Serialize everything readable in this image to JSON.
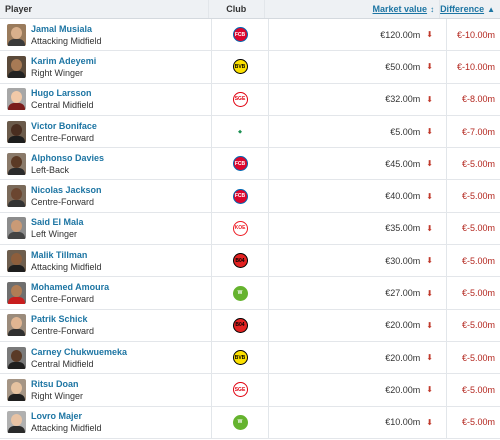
{
  "header": {
    "player": "Player",
    "club": "Club",
    "market_value": "Market value",
    "market_value_sort_icon": "sort-both-icon",
    "difference": "Difference",
    "difference_sort_icon": "sort-asc-icon"
  },
  "colors": {
    "link": "#1d75a3",
    "negative": "#b3261e",
    "arrow_down": "#c0392b",
    "header_bg": "#eef1f4"
  },
  "rows": [
    {
      "name": "Jamal Musiala",
      "position": "Attacking Midfield",
      "club_icon": "bayern-munich-logo-icon",
      "market_value": "€120.00m",
      "difference": "€-10.00m"
    },
    {
      "name": "Karim Adeyemi",
      "position": "Right Winger",
      "club_icon": "borussia-dortmund-logo-icon",
      "market_value": "€50.00m",
      "difference": "€-10.00m"
    },
    {
      "name": "Hugo Larsson",
      "position": "Central Midfield",
      "club_icon": "eintracht-frankfurt-logo-icon",
      "market_value": "€32.00m",
      "difference": "€-8.00m"
    },
    {
      "name": "Victor Boniface",
      "position": "Centre-Forward",
      "club_icon": "werder-bremen-logo-icon",
      "market_value": "€5.00m",
      "difference": "€-7.00m"
    },
    {
      "name": "Alphonso Davies",
      "position": "Left-Back",
      "club_icon": "bayern-munich-logo-icon",
      "market_value": "€45.00m",
      "difference": "€-5.00m"
    },
    {
      "name": "Nicolas Jackson",
      "position": "Centre-Forward",
      "club_icon": "bayern-munich-logo-icon",
      "market_value": "€40.00m",
      "difference": "€-5.00m"
    },
    {
      "name": "Said El Mala",
      "position": "Left Winger",
      "club_icon": "fc-koln-logo-icon",
      "market_value": "€35.00m",
      "difference": "€-5.00m"
    },
    {
      "name": "Malik Tillman",
      "position": "Attacking Midfield",
      "club_icon": "bayer-leverkusen-logo-icon",
      "market_value": "€30.00m",
      "difference": "€-5.00m"
    },
    {
      "name": "Mohamed Amoura",
      "position": "Centre-Forward",
      "club_icon": "vfl-wolfsburg-logo-icon",
      "market_value": "€27.00m",
      "difference": "€-5.00m"
    },
    {
      "name": "Patrik Schick",
      "position": "Centre-Forward",
      "club_icon": "bayer-leverkusen-logo-icon",
      "market_value": "€20.00m",
      "difference": "€-5.00m"
    },
    {
      "name": "Carney Chukwuemeka",
      "position": "Central Midfield",
      "club_icon": "borussia-dortmund-logo-icon",
      "market_value": "€20.00m",
      "difference": "€-5.00m"
    },
    {
      "name": "Ritsu Doan",
      "position": "Right Winger",
      "club_icon": "eintracht-frankfurt-logo-icon",
      "market_value": "€20.00m",
      "difference": "€-5.00m"
    },
    {
      "name": "Lovro Majer",
      "position": "Attacking Midfield",
      "club_icon": "vfl-wolfsburg-logo-icon",
      "market_value": "€10.00m",
      "difference": "€-5.00m"
    }
  ]
}
